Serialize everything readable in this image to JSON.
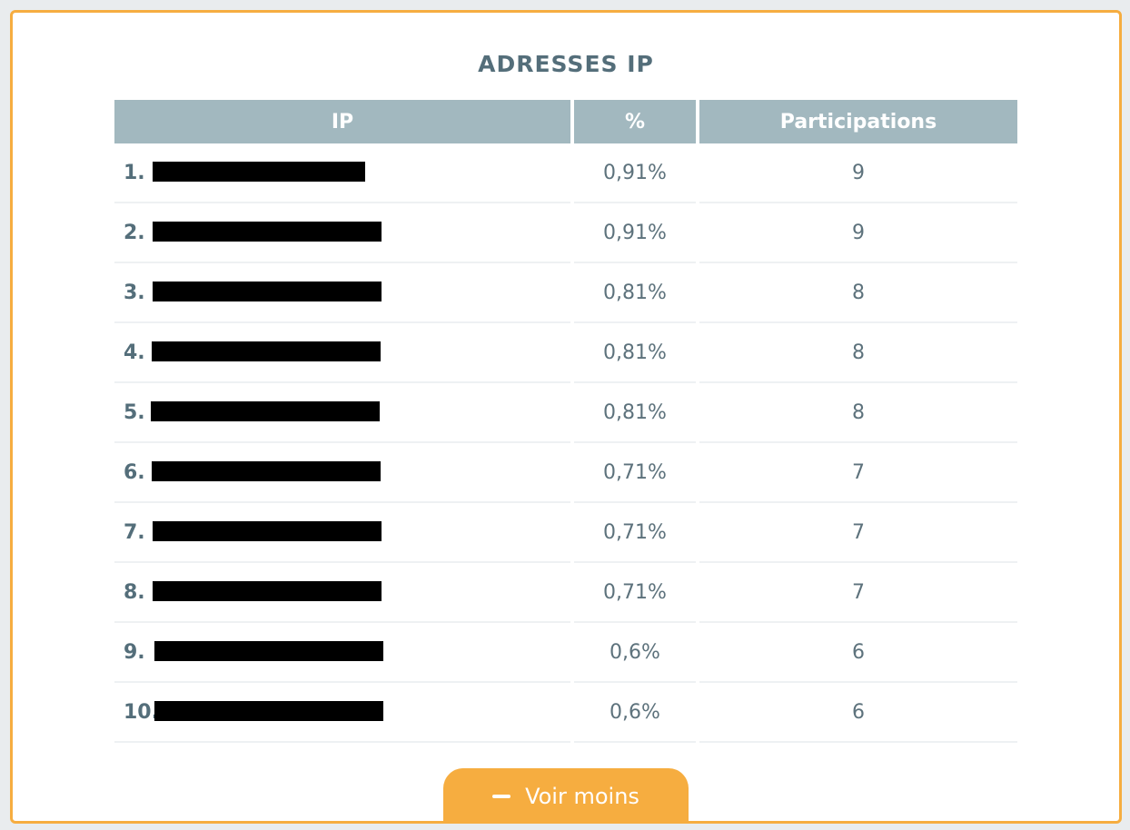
{
  "title": "ADRESSES IP",
  "table": {
    "headers": {
      "ip": "IP",
      "pct": "%",
      "participations": "Participations"
    },
    "rows": [
      {
        "rank": "1.",
        "pct": "0,91%",
        "participations": "9"
      },
      {
        "rank": "2.",
        "pct": "0,91%",
        "participations": "9"
      },
      {
        "rank": "3.",
        "pct": "0,81%",
        "participations": "8"
      },
      {
        "rank": "4.",
        "pct": "0,81%",
        "participations": "8"
      },
      {
        "rank": "5.",
        "pct": "0,81%",
        "participations": "8"
      },
      {
        "rank": "6.",
        "pct": "0,71%",
        "participations": "7"
      },
      {
        "rank": "7.",
        "pct": "0,71%",
        "participations": "7"
      },
      {
        "rank": "8.",
        "pct": "0,71%",
        "participations": "7"
      },
      {
        "rank": "9.",
        "pct": "0,6%",
        "participations": "6"
      },
      {
        "rank": "10.",
        "pct": "0,6%",
        "participations": "6"
      }
    ]
  },
  "toggle_button": {
    "label": "Voir moins",
    "icon": "minus-icon"
  },
  "colors": {
    "accent": "#f6ad40",
    "header_bg": "#a2b8bf",
    "text": "#546e7a",
    "redaction": "#000000"
  }
}
